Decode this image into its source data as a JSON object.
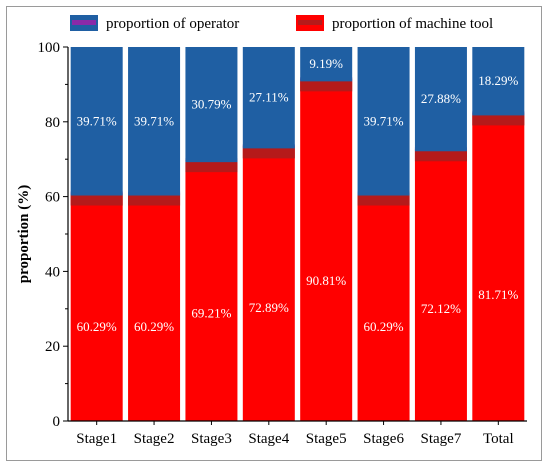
{
  "chart_data": {
    "type": "bar",
    "stacked": true,
    "categories": [
      "Stage1",
      "Stage2",
      "Stage3",
      "Stage4",
      "Stage5",
      "Stage6",
      "Stage7",
      "Total"
    ],
    "series": [
      {
        "name": "proportion of machine tool",
        "color": "#ff0000",
        "values": [
          60.29,
          60.29,
          69.21,
          72.89,
          90.81,
          60.29,
          72.12,
          81.71
        ],
        "labels": [
          "60.29%",
          "60.29%",
          "69.21%",
          "72.89%",
          "90.81%",
          "60.29%",
          "72.12%",
          "81.71%"
        ]
      },
      {
        "name": "proportion of operator",
        "color": "#1f5fa3",
        "values": [
          39.71,
          39.71,
          30.79,
          27.11,
          9.19,
          39.71,
          27.88,
          18.29
        ],
        "labels": [
          "39.71%",
          "39.71%",
          "30.79%",
          "27.11%",
          "9.19%",
          "39.71%",
          "27.88%",
          "18.29%"
        ]
      }
    ],
    "ylabel": "proportion  (%)",
    "xlabel": "",
    "ylim": [
      0,
      100
    ],
    "yticks": [
      "0",
      "20",
      "40",
      "60",
      "80",
      "100"
    ],
    "legend": "top",
    "grid": false
  }
}
